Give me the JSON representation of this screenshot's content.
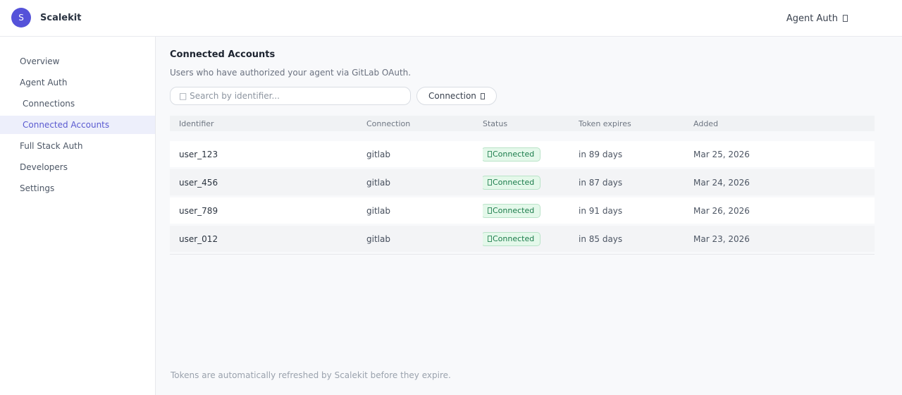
{
  "topbar": {
    "logo_letter": "S",
    "brand": "Scalekit",
    "nav_label": "Agent Auth"
  },
  "sidebar": {
    "items": [
      {
        "label": "Overview"
      },
      {
        "label": "Agent Auth"
      },
      {
        "label": "Connections"
      },
      {
        "label": "Connected Accounts"
      },
      {
        "label": "Full Stack Auth"
      },
      {
        "label": "Developers"
      },
      {
        "label": "Settings"
      }
    ],
    "active_item": "Connected Accounts"
  },
  "main": {
    "title": "Connected Accounts",
    "subtitle": "Users who have authorized your agent via GitLab OAuth.",
    "search": {
      "placeholder": "□ Search by identifier...",
      "value": ""
    },
    "filter_button_label": "Connection",
    "table": {
      "columns": [
        "Identifier",
        "Connection",
        "Status",
        "Token expires",
        "Added"
      ],
      "rows": [
        {
          "identifier": "user_123",
          "connection": "gitlab",
          "status": "Connected",
          "token_expires": "in 89 days",
          "added": "Mar 25, 2026"
        },
        {
          "identifier": "user_456",
          "connection": "gitlab",
          "status": "Connected",
          "token_expires": "in 87 days",
          "added": "Mar 24, 2026"
        },
        {
          "identifier": "user_789",
          "connection": "gitlab",
          "status": "Connected",
          "token_expires": "in 91 days",
          "added": "Mar 26, 2026"
        },
        {
          "identifier": "user_012",
          "connection": "gitlab",
          "status": "Connected",
          "token_expires": "in 85 days",
          "added": "Mar 23, 2026"
        }
      ]
    },
    "footer_note": "Tokens are automatically refreshed by Scalekit before they expire."
  },
  "colors": {
    "accent": "#5552d9",
    "sidebar_active_bg": "#edeffb",
    "sidebar_active_text": "#5a5ad0",
    "panel_bg": "#f8f9fb",
    "badge_bg": "#e4f8ea",
    "badge_border": "#b9e3c8",
    "badge_text": "#1b7c4b"
  }
}
